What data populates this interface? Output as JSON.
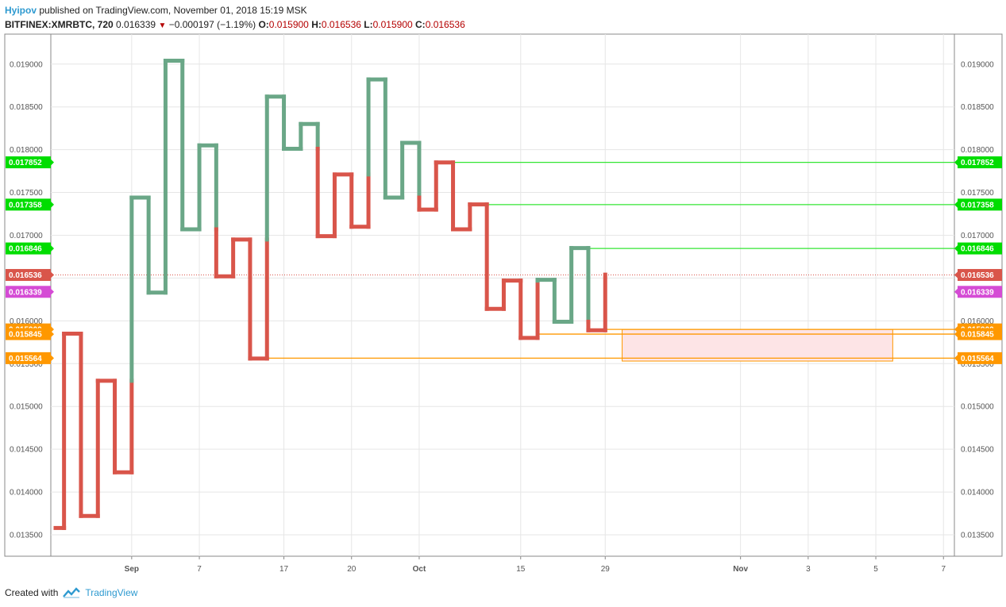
{
  "header": {
    "user": "Hyipov",
    "published": "published on TradingView.com, November 01, 2018 15:19 MSK",
    "symbol": "BITFINEX:XMRBTC, 720",
    "last": "0.016339",
    "change": "−0.000197 (−1.19%)",
    "o_label": "O:",
    "o_value": "0.015900",
    "h_label": "H:",
    "h_value": "0.016536",
    "l_label": "L:",
    "l_value": "0.015900",
    "c_label": "C:",
    "c_value": "0.016536"
  },
  "footer": {
    "created_with": "Created with",
    "brand": "TradingView"
  },
  "chart_data": {
    "type": "line",
    "style": "kagi",
    "colors": {
      "up": "#6aa787",
      "down": "#d9554a",
      "grid": "#e6e6e6",
      "support": "#33e633",
      "resistance": "#ff9800"
    },
    "ylim": [
      0.01325,
      0.01935
    ],
    "yticks": [
      "0.019000",
      "0.018500",
      "0.018000",
      "0.017500",
      "0.017000",
      "0.016500",
      "0.016000",
      "0.015500",
      "0.015000",
      "0.014500",
      "0.014000",
      "0.013500"
    ],
    "xticks": [
      {
        "label": "Sep",
        "bold": true,
        "d": 4.5
      },
      {
        "label": "7",
        "bold": false,
        "d": 8.5
      },
      {
        "label": "17",
        "bold": false,
        "d": 13.5
      },
      {
        "label": "20",
        "bold": false,
        "d": 17.5
      },
      {
        "label": "Oct",
        "bold": true,
        "d": 21.5
      },
      {
        "label": "15",
        "bold": false,
        "d": 27.5
      },
      {
        "label": "29",
        "bold": false,
        "d": 32.5
      },
      {
        "label": "Nov",
        "bold": true,
        "d": 40.5
      },
      {
        "label": "3",
        "bold": false,
        "d": 44.5
      },
      {
        "label": "5",
        "bold": false,
        "d": 48.5
      },
      {
        "label": "7",
        "bold": false,
        "d": 52.5
      }
    ],
    "kagi": [
      {
        "d": 0,
        "y": 0.01358
      },
      {
        "d": 0.5,
        "y": 0.01358
      },
      {
        "d": 0.5,
        "y": 0.01585
      },
      {
        "d": 1.5,
        "y": 0.01585
      },
      {
        "d": 1.5,
        "y": 0.01372
      },
      {
        "d": 2.5,
        "y": 0.01372
      },
      {
        "d": 2.5,
        "y": 0.0153
      },
      {
        "d": 3.5,
        "y": 0.0153
      },
      {
        "d": 3.5,
        "y": 0.01423
      },
      {
        "d": 4.5,
        "y": 0.01423
      },
      {
        "d": 4.5,
        "y": 0.01744
      },
      {
        "d": 5.5,
        "y": 0.01744
      },
      {
        "d": 5.5,
        "y": 0.01633
      },
      {
        "d": 6.5,
        "y": 0.01633
      },
      {
        "d": 6.5,
        "y": 0.01904
      },
      {
        "d": 7.5,
        "y": 0.01904
      },
      {
        "d": 7.5,
        "y": 0.01707
      },
      {
        "d": 8.5,
        "y": 0.01707
      },
      {
        "d": 8.5,
        "y": 0.01805
      },
      {
        "d": 9.5,
        "y": 0.01805
      },
      {
        "d": 9.5,
        "y": 0.01652
      },
      {
        "d": 10.5,
        "y": 0.01652
      },
      {
        "d": 10.5,
        "y": 0.01695
      },
      {
        "d": 11.5,
        "y": 0.01695
      },
      {
        "d": 11.5,
        "y": 0.01556
      },
      {
        "d": 12.5,
        "y": 0.01556
      },
      {
        "d": 12.5,
        "y": 0.01862
      },
      {
        "d": 13.5,
        "y": 0.01862
      },
      {
        "d": 13.5,
        "y": 0.01801
      },
      {
        "d": 14.5,
        "y": 0.01801
      },
      {
        "d": 14.5,
        "y": 0.0183
      },
      {
        "d": 15.5,
        "y": 0.0183
      },
      {
        "d": 15.5,
        "y": 0.01699
      },
      {
        "d": 16.5,
        "y": 0.01699
      },
      {
        "d": 16.5,
        "y": 0.01771
      },
      {
        "d": 17.5,
        "y": 0.01771
      },
      {
        "d": 17.5,
        "y": 0.0171
      },
      {
        "d": 18.5,
        "y": 0.0171
      },
      {
        "d": 18.5,
        "y": 0.01882
      },
      {
        "d": 19.5,
        "y": 0.01882
      },
      {
        "d": 19.5,
        "y": 0.01744
      },
      {
        "d": 20.5,
        "y": 0.01744
      },
      {
        "d": 20.5,
        "y": 0.01808
      },
      {
        "d": 21.5,
        "y": 0.01808
      },
      {
        "d": 21.5,
        "y": 0.0173
      },
      {
        "d": 22.5,
        "y": 0.0173
      },
      {
        "d": 22.5,
        "y": 0.01785
      },
      {
        "d": 23.5,
        "y": 0.01785
      },
      {
        "d": 23.5,
        "y": 0.01707
      },
      {
        "d": 24.5,
        "y": 0.01707
      },
      {
        "d": 24.5,
        "y": 0.01736
      },
      {
        "d": 25.5,
        "y": 0.01736
      },
      {
        "d": 25.5,
        "y": 0.01614
      },
      {
        "d": 26.5,
        "y": 0.01614
      },
      {
        "d": 26.5,
        "y": 0.01647
      },
      {
        "d": 27.5,
        "y": 0.01647
      },
      {
        "d": 27.5,
        "y": 0.0158
      },
      {
        "d": 28.5,
        "y": 0.0158
      },
      {
        "d": 28.5,
        "y": 0.01648
      },
      {
        "d": 29.5,
        "y": 0.01648
      },
      {
        "d": 29.5,
        "y": 0.01599
      },
      {
        "d": 30.5,
        "y": 0.01599
      },
      {
        "d": 30.5,
        "y": 0.01685
      },
      {
        "d": 31.5,
        "y": 0.01685
      },
      {
        "d": 31.5,
        "y": 0.01589
      },
      {
        "d": 32.5,
        "y": 0.01589
      },
      {
        "d": 32.5,
        "y": 0.01654
      }
    ],
    "last_price": {
      "value": 0.016536,
      "label": "0.016536",
      "color": "#d9554a"
    },
    "current_price": {
      "value": 0.016339,
      "label": "0.016339",
      "color": "#d54bd5"
    },
    "levels": [
      {
        "value": 0.017852,
        "label": "0.017852",
        "color": "#33e633",
        "tag": "#00dd00",
        "from_d": 23.5
      },
      {
        "value": 0.017358,
        "label": "0.017358",
        "color": "#33e633",
        "tag": "#00dd00",
        "from_d": 25.5
      },
      {
        "value": 0.016846,
        "label": "0.016846",
        "color": "#33e633",
        "tag": "#00dd00",
        "from_d": 31.5
      },
      {
        "value": 0.0159,
        "label": "0.015900",
        "color": "#ff9800",
        "tag": "#ff9800",
        "from_d": 32.5
      },
      {
        "value": 0.015845,
        "label": "0.015845",
        "color": "#ff9800",
        "tag": "#ff9800",
        "from_d": 28.5
      },
      {
        "value": 0.015564,
        "label": "0.015564",
        "color": "#ff9800",
        "tag": "#ff9800",
        "from_d": 12.5
      }
    ],
    "zone": {
      "from_d": 33.5,
      "to_d": 49.5,
      "y_top": 0.0159,
      "y_bottom": 0.01553,
      "fill": "#fde4e6",
      "stroke": "#ff9800"
    }
  }
}
